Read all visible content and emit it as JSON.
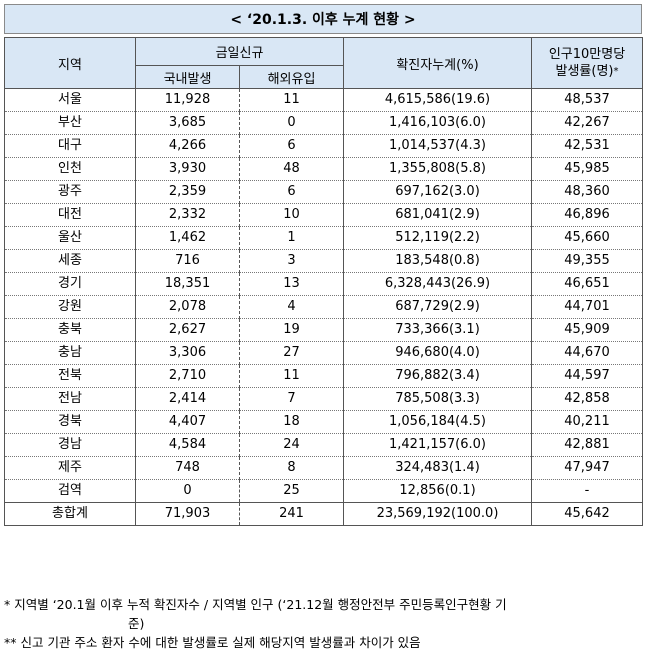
{
  "title": "< ‘20.1.3. 이후 누계 현황 >",
  "headers": {
    "region": "지역",
    "today_new": "금일신규",
    "domestic": "국내발생",
    "overseas": "해외유입",
    "cumulative": "확진자누계(%)",
    "rate_line1": "인구10만명당",
    "rate_line2": "발생률(명)",
    "rate_mark": "*"
  },
  "rows": [
    {
      "region": "서울",
      "domestic": "11,928",
      "overseas": "11",
      "cumulative": "4,615,586(19.6)",
      "rate": "48,537"
    },
    {
      "region": "부산",
      "domestic": "3,685",
      "overseas": "0",
      "cumulative": "1,416,103(6.0)",
      "rate": "42,267"
    },
    {
      "region": "대구",
      "domestic": "4,266",
      "overseas": "6",
      "cumulative": "1,014,537(4.3)",
      "rate": "42,531"
    },
    {
      "region": "인천",
      "domestic": "3,930",
      "overseas": "48",
      "cumulative": "1,355,808(5.8)",
      "rate": "45,985"
    },
    {
      "region": "광주",
      "domestic": "2,359",
      "overseas": "6",
      "cumulative": "697,162(3.0)",
      "rate": "48,360"
    },
    {
      "region": "대전",
      "domestic": "2,332",
      "overseas": "10",
      "cumulative": "681,041(2.9)",
      "rate": "46,896"
    },
    {
      "region": "울산",
      "domestic": "1,462",
      "overseas": "1",
      "cumulative": "512,119(2.2)",
      "rate": "45,660"
    },
    {
      "region": "세종",
      "domestic": "716",
      "overseas": "3",
      "cumulative": "183,548(0.8)",
      "rate": "49,355"
    },
    {
      "region": "경기",
      "domestic": "18,351",
      "overseas": "13",
      "cumulative": "6,328,443(26.9)",
      "rate": "46,651"
    },
    {
      "region": "강원",
      "domestic": "2,078",
      "overseas": "4",
      "cumulative": "687,729(2.9)",
      "rate": "44,701"
    },
    {
      "region": "충북",
      "domestic": "2,627",
      "overseas": "19",
      "cumulative": "733,366(3.1)",
      "rate": "45,909"
    },
    {
      "region": "충남",
      "domestic": "3,306",
      "overseas": "27",
      "cumulative": "946,680(4.0)",
      "rate": "44,670"
    },
    {
      "region": "전북",
      "domestic": "2,710",
      "overseas": "11",
      "cumulative": "796,882(3.4)",
      "rate": "44,597"
    },
    {
      "region": "전남",
      "domestic": "2,414",
      "overseas": "7",
      "cumulative": "785,508(3.3)",
      "rate": "42,858"
    },
    {
      "region": "경북",
      "domestic": "4,407",
      "overseas": "18",
      "cumulative": "1,056,184(4.5)",
      "rate": "40,211"
    },
    {
      "region": "경남",
      "domestic": "4,584",
      "overseas": "24",
      "cumulative": "1,421,157(6.0)",
      "rate": "42,881"
    },
    {
      "region": "제주",
      "domestic": "748",
      "overseas": "8",
      "cumulative": "324,483(1.4)",
      "rate": "47,947"
    },
    {
      "region": "검역",
      "domestic": "0",
      "overseas": "25",
      "cumulative": "12,856(0.1)",
      "rate": "-"
    }
  ],
  "total": {
    "region": "총합계",
    "domestic": "71,903",
    "overseas": "241",
    "cumulative": "23,569,192(100.0)",
    "rate": "45,642"
  },
  "notes": {
    "note1_line1": "* 지역별 ‘20.1월 이후 누적 확진자수 / 지역별 인구 (‘21.12월 행정안전부 주민등록인구현황 기",
    "note1_line2": "준)",
    "note2": "** 신고 기관 주소 환자 수에 대한 발생률로 실제 해당지역 발생률과 차이가 있음"
  }
}
